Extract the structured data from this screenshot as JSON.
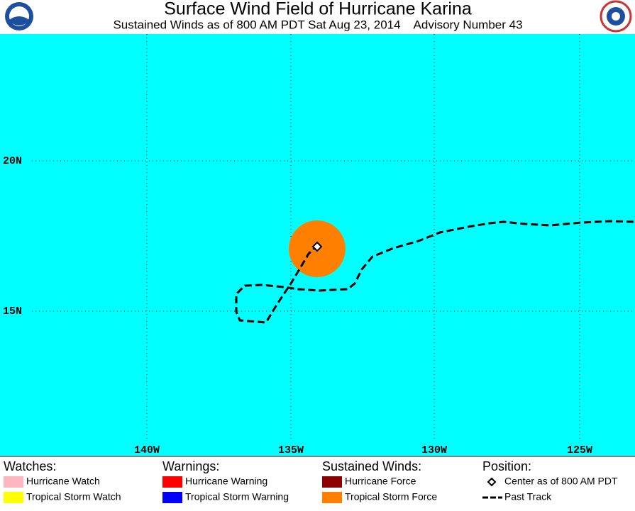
{
  "header": {
    "title": "Surface Wind Field of Hurricane Karina",
    "subtitle": "Sustained Winds as of 800 AM PDT Sat Aug 23, 2014    Advisory Number 43"
  },
  "map": {
    "longitude_labels": [
      "140W",
      "135W",
      "130W",
      "125W"
    ],
    "latitude_labels": [
      "20N",
      "15N"
    ]
  },
  "legend": {
    "watches": {
      "title": "Watches:",
      "items": [
        "Hurricane Watch",
        "Tropical Storm Watch"
      ]
    },
    "warnings": {
      "title": "Warnings:",
      "items": [
        "Hurricane Warning",
        "Tropical Storm Warning"
      ]
    },
    "winds": {
      "title": "Sustained Winds:",
      "items": [
        "Hurricane Force",
        "Tropical Storm Force"
      ]
    },
    "position": {
      "title": "Position:",
      "items": [
        "Center as of 800 AM PDT",
        "Past Track"
      ]
    }
  }
}
